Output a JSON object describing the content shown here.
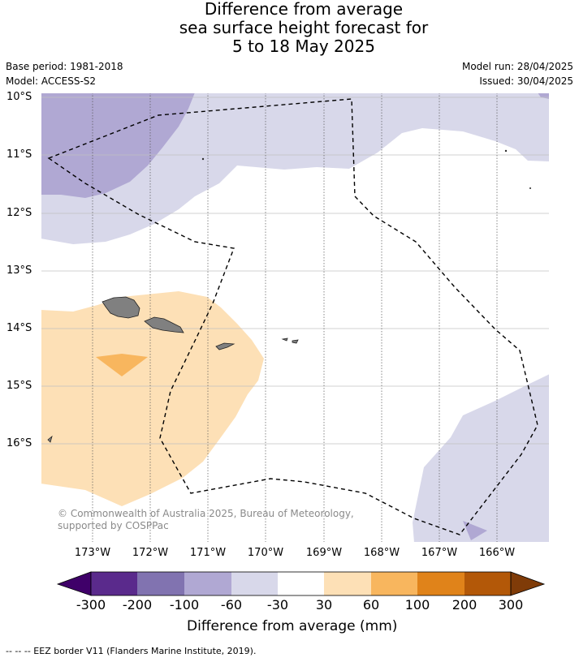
{
  "title": {
    "line1": "Difference from average",
    "line2": "sea surface height forecast for",
    "line3": "5 to 18 May 2025"
  },
  "meta": {
    "base_period": "Base period: 1981-2018",
    "model": "Model: ACCESS-S2",
    "model_run": "Model run: 28/04/2025",
    "issued": "Issued: 30/04/2025"
  },
  "map": {
    "lat_labels": [
      "10°S",
      "11°S",
      "12°S",
      "13°S",
      "14°S",
      "15°S",
      "16°S"
    ],
    "lon_labels": [
      "173°W",
      "172°W",
      "171°W",
      "170°W",
      "169°W",
      "168°W",
      "167°W",
      "166°W"
    ],
    "copyright": "© Commonwealth of Australia 2025, Bureau of Meteorology, supported by COSPPac",
    "colors": {
      "land": "#808080",
      "n_60_30": "#d8d8ea",
      "n_100_60": "#b0a8d3",
      "p_30_60": "#fde0b6",
      "p_60_100": "#f8b65e"
    }
  },
  "colorbar": {
    "ticks": [
      "-300",
      "-200",
      "-100",
      "-60",
      "-30",
      "30",
      "60",
      "100",
      "200",
      "300"
    ],
    "label": "Difference from average (mm)",
    "colors": [
      "#3f0069",
      "#5a2a8c",
      "#8173b0",
      "#b0a8d3",
      "#d8d8ea",
      "#ffffff",
      "#fde0b6",
      "#f8b65e",
      "#e0831a",
      "#b35808",
      "#7f3b08"
    ]
  },
  "legend_note": "--  --  -- EEZ border V11 (Flanders Marine Institute, 2019)."
}
